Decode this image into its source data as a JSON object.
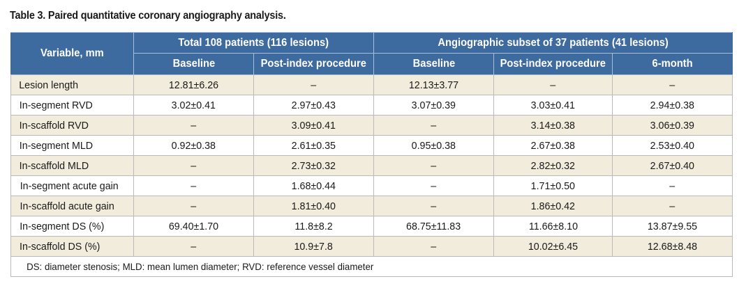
{
  "caption": "Table 3. Paired quantitative coronary angiography analysis.",
  "header": {
    "variable": "Variable, mm",
    "group1": "Total 108 patients  (116 lesions)",
    "group2": "Angiographic subset of 37 patients  (41 lesions)",
    "cols": [
      "Baseline",
      "Post-index procedure",
      "Baseline",
      "Post-index procedure",
      "6-month"
    ]
  },
  "rows": [
    {
      "label": "Lesion length",
      "values": [
        "12.81±6.26",
        "–",
        "12.13±3.77",
        "–",
        "–"
      ]
    },
    {
      "label": "In-segment RVD",
      "values": [
        "3.02±0.41",
        "2.97±0.43",
        "3.07±0.39",
        "3.03±0.41",
        "2.94±0.38"
      ]
    },
    {
      "label": "In-scaffold RVD",
      "values": [
        "–",
        "3.09±0.41",
        "–",
        "3.14±0.38",
        "3.06±0.39"
      ]
    },
    {
      "label": "In-segment MLD",
      "values": [
        "0.92±0.38",
        "2.61±0.35",
        "0.95±0.38",
        "2.67±0.38",
        "2.53±0.40"
      ]
    },
    {
      "label": "In-scaffold MLD",
      "values": [
        "–",
        "2.73±0.32",
        "–",
        "2.82±0.32",
        "2.67±0.40"
      ]
    },
    {
      "label": "In-segment acute gain",
      "values": [
        "–",
        "1.68±0.44",
        "–",
        "1.71±0.50",
        "–"
      ]
    },
    {
      "label": "In-scaffold acute gain",
      "values": [
        "–",
        "1.81±0.40",
        "–",
        "1.86±0.42",
        "–"
      ]
    },
    {
      "label": "In-segment DS (%)",
      "values": [
        "69.40±1.70",
        "11.8±8.2",
        "68.75±11.83",
        "11.66±8.10",
        "13.87±9.55"
      ]
    },
    {
      "label": "In-scaffold DS (%)",
      "values": [
        "–",
        "10.9±7.8",
        "–",
        "10.02±6.45",
        "12.68±8.48"
      ]
    }
  ],
  "footnote": "DS: diameter stenosis; MLD: mean lumen diameter; RVD: reference vessel diameter"
}
